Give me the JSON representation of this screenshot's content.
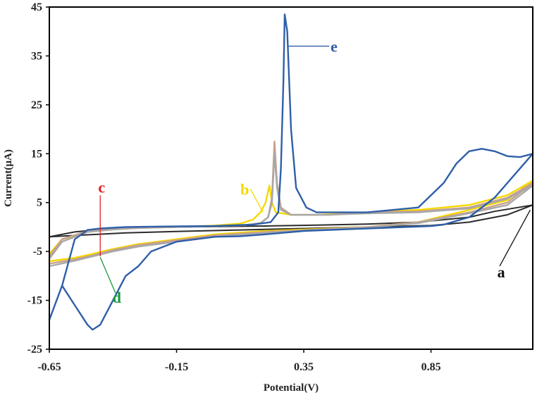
{
  "chart_data": {
    "type": "line",
    "title": "",
    "xlabel": "Potential(V)",
    "ylabel": "Current(µA)",
    "xlim": [
      -0.65,
      1.25
    ],
    "ylim": [
      -25,
      45
    ],
    "xticks": [
      -0.65,
      -0.15,
      0.35,
      0.85
    ],
    "xtick_labels": [
      "-0.65",
      "-0.15",
      "0.35",
      "0.85"
    ],
    "yticks": [
      -25,
      -15,
      -5,
      5,
      15,
      25,
      35,
      45
    ],
    "ytick_labels": [
      "-25",
      "-15",
      "-5",
      "5",
      "15",
      "25",
      "35",
      "45"
    ],
    "grid": false,
    "series": [
      {
        "name": "a",
        "label": "a",
        "color": "#2b2b2b",
        "x": [
          -0.65,
          -0.55,
          -0.45,
          -0.3,
          -0.15,
          0.0,
          0.2,
          0.4,
          0.6,
          0.8,
          1.0,
          1.1,
          1.25,
          1.25,
          1.15,
          1.0,
          0.85,
          0.6,
          0.35,
          0.1,
          -0.15,
          -0.35,
          -0.5,
          -0.65
        ],
        "y": [
          -2.0,
          -1.0,
          -0.5,
          -0.2,
          0.0,
          0.1,
          0.2,
          0.4,
          0.6,
          1.0,
          2.0,
          3.2,
          4.5,
          4.5,
          2.5,
          1.0,
          0.3,
          0.0,
          -0.3,
          -0.6,
          -0.9,
          -1.2,
          -1.6,
          -2.0
        ]
      },
      {
        "name": "b",
        "label": "b",
        "color": "#f5d800",
        "x": [
          -0.65,
          -0.6,
          -0.5,
          -0.4,
          -0.3,
          -0.15,
          0.0,
          0.1,
          0.15,
          0.18,
          0.2,
          0.215,
          0.225,
          0.24,
          0.3,
          0.4,
          0.6,
          0.8,
          1.0,
          1.15,
          1.25,
          1.25,
          1.15,
          1.0,
          0.8,
          0.6,
          0.4,
          0.2,
          0.0,
          -0.15,
          -0.3,
          -0.4,
          -0.48,
          -0.55,
          -0.65
        ],
        "y": [
          -5.5,
          -2.5,
          -1.0,
          -0.5,
          -0.2,
          0.0,
          0.3,
          0.7,
          1.5,
          3.0,
          5.0,
          8.5,
          5.0,
          3.0,
          2.5,
          2.5,
          3.0,
          3.5,
          4.5,
          6.5,
          9.5,
          9.5,
          5.5,
          3.5,
          1.0,
          0.0,
          -0.4,
          -0.8,
          -1.5,
          -2.5,
          -3.5,
          -4.5,
          -5.5,
          -6.3,
          -7.0
        ]
      },
      {
        "name": "c",
        "label": "c",
        "color": "#c9a08c",
        "x": [
          -0.65,
          -0.6,
          -0.5,
          -0.4,
          -0.3,
          -0.15,
          0.0,
          0.12,
          0.18,
          0.21,
          0.225,
          0.235,
          0.245,
          0.26,
          0.3,
          0.45,
          0.6,
          0.8,
          1.0,
          1.15,
          1.25,
          1.25,
          1.15,
          1.0,
          0.8,
          0.6,
          0.4,
          0.2,
          0.0,
          -0.15,
          -0.3,
          -0.4,
          -0.48,
          -0.55,
          -0.65
        ],
        "y": [
          -6.0,
          -2.5,
          -0.8,
          -0.4,
          -0.2,
          0.0,
          0.2,
          0.4,
          0.8,
          2.0,
          6.0,
          17.5,
          9.0,
          4.0,
          2.5,
          2.5,
          3.0,
          3.2,
          4.0,
          6.0,
          9.0,
          9.0,
          5.0,
          3.0,
          1.0,
          0.0,
          -0.5,
          -1.0,
          -1.7,
          -2.7,
          -3.7,
          -4.7,
          -5.8,
          -6.6,
          -7.5
        ]
      },
      {
        "name": "d",
        "label": "d",
        "color": "#a8a8a8",
        "x": [
          -0.65,
          -0.6,
          -0.5,
          -0.4,
          -0.3,
          -0.15,
          0.0,
          0.12,
          0.18,
          0.21,
          0.225,
          0.235,
          0.245,
          0.26,
          0.3,
          0.45,
          0.6,
          0.8,
          1.0,
          1.15,
          1.25,
          1.25,
          1.15,
          1.0,
          0.8,
          0.6,
          0.4,
          0.2,
          0.0,
          -0.15,
          -0.3,
          -0.4,
          -0.48,
          -0.55,
          -0.65
        ],
        "y": [
          -6.5,
          -3.0,
          -1.0,
          -0.5,
          -0.2,
          0.0,
          0.2,
          0.4,
          0.8,
          2.0,
          5.0,
          15.0,
          8.0,
          3.5,
          2.5,
          2.5,
          2.8,
          3.0,
          3.8,
          5.8,
          8.5,
          8.5,
          4.5,
          2.8,
          0.8,
          -0.1,
          -0.6,
          -1.2,
          -2.0,
          -3.0,
          -4.0,
          -5.0,
          -6.0,
          -6.9,
          -8.0
        ]
      },
      {
        "name": "e",
        "label": "e",
        "color": "#2f5fa8",
        "x": [
          -0.65,
          -0.6,
          -0.55,
          -0.5,
          -0.45,
          -0.35,
          -0.2,
          0.0,
          0.15,
          0.22,
          0.25,
          0.26,
          0.27,
          0.275,
          0.285,
          0.3,
          0.32,
          0.36,
          0.4,
          0.6,
          0.8,
          0.9,
          0.95,
          1.0,
          1.05,
          1.1,
          1.15,
          1.2,
          1.25,
          1.25,
          1.1,
          1.0,
          0.9,
          0.85,
          0.6,
          0.35,
          0.2,
          0.1,
          0.0,
          -0.15,
          -0.25,
          -0.3,
          -0.35,
          -0.4,
          -0.45,
          -0.48,
          -0.5,
          -0.55,
          -0.6,
          -0.65
        ],
        "y": [
          -19.0,
          -12.0,
          -2.5,
          -0.6,
          -0.3,
          0.0,
          0.1,
          0.2,
          0.5,
          1.0,
          3.0,
          12.0,
          30.0,
          43.5,
          40.0,
          20.0,
          8.0,
          4.0,
          3.0,
          3.0,
          4.0,
          9.0,
          13.0,
          15.5,
          16.0,
          15.5,
          14.5,
          14.3,
          15.0,
          15.0,
          6.0,
          2.0,
          0.5,
          0.2,
          -0.3,
          -0.8,
          -1.5,
          -1.9,
          -2.0,
          -3.0,
          -5.0,
          -8.0,
          -10.0,
          -15.0,
          -20.0,
          -21.0,
          -20.0,
          -16.0,
          -12.0,
          -19.0
        ]
      }
    ],
    "annotations": [
      {
        "text": "a",
        "color": "#111111",
        "anchor_x": 1.24,
        "anchor_y": 3.5,
        "label_x": 1.12,
        "label_y": -8.0
      },
      {
        "text": "b",
        "color": "#f5d800",
        "anchor_x": 0.19,
        "anchor_y": 3.0,
        "label_x": 0.14,
        "label_y": 7.8
      },
      {
        "text": "c",
        "color": "#e02020",
        "anchor_x": -0.45,
        "anchor_y": -6.0,
        "label_x": -0.45,
        "label_y": 6.5
      },
      {
        "text": "d",
        "color": "#1a9a3c",
        "anchor_x": -0.45,
        "anchor_y": -6.2,
        "label_x": -0.39,
        "label_y": -13.5
      },
      {
        "text": "e",
        "color": "#2f5fa8",
        "anchor_x": 0.29,
        "anchor_y": 37.0,
        "label_x": 0.45,
        "label_y": 37.0
      }
    ]
  }
}
